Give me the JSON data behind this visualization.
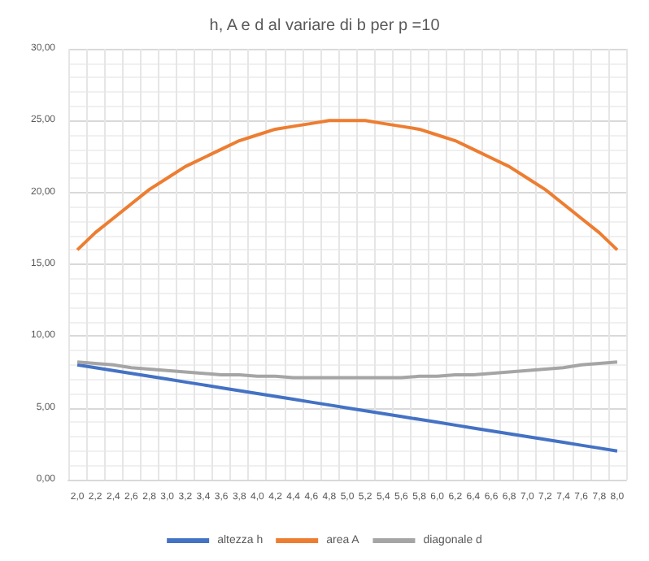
{
  "chart_data": {
    "type": "line",
    "title": "h, A e d al variare di b per p =10",
    "categories": [
      "2,0",
      "2,2",
      "2,4",
      "2,6",
      "2,8",
      "3,0",
      "3,2",
      "3,4",
      "3,6",
      "3,8",
      "4,0",
      "4,2",
      "4,4",
      "4,6",
      "4,8",
      "5,0",
      "5,2",
      "5,4",
      "5,6",
      "5,8",
      "6,0",
      "6,2",
      "6,4",
      "6,6",
      "6,8",
      "7,0",
      "7,2",
      "7,4",
      "7,6",
      "7,8",
      "8,0"
    ],
    "series": [
      {
        "name": "altezza h",
        "color": "#4472c4",
        "values": [
          8,
          7.8,
          7.6,
          7.4,
          7.2,
          7,
          6.8,
          6.6,
          6.4,
          6.2,
          6,
          5.8,
          5.6,
          5.4,
          5.2,
          5,
          4.8,
          4.6,
          4.4,
          4.2,
          4,
          3.8,
          3.6,
          3.4,
          3.2,
          3,
          2.8,
          2.6,
          2.4,
          2.2,
          2
        ]
      },
      {
        "name": "area A",
        "color": "#ed7d31",
        "values": [
          16,
          17.2,
          18.2,
          19.2,
          20.2,
          21,
          21.8,
          22.4,
          23,
          23.6,
          24,
          24.4,
          24.6,
          24.8,
          25,
          25,
          25,
          24.8,
          24.6,
          24.4,
          24,
          23.6,
          23,
          22.4,
          21.8,
          21,
          20.2,
          19.2,
          18.2,
          17.2,
          16
        ]
      },
      {
        "name": "diagonale d",
        "color": "#a5a5a5",
        "values": [
          8.2,
          8.1,
          8,
          7.8,
          7.7,
          7.6,
          7.5,
          7.4,
          7.3,
          7.3,
          7.2,
          7.2,
          7.1,
          7.1,
          7.1,
          7.1,
          7.1,
          7.1,
          7.1,
          7.2,
          7.2,
          7.3,
          7.3,
          7.4,
          7.5,
          7.6,
          7.7,
          7.8,
          8,
          8.1,
          8.2
        ]
      }
    ],
    "ylim": [
      0,
      30
    ],
    "yticks": [
      {
        "value": 0,
        "label": "0,00"
      },
      {
        "value": 5,
        "label": "5,00"
      },
      {
        "value": 10,
        "label": "10,00"
      },
      {
        "value": 15,
        "label": "15,00"
      },
      {
        "value": 20,
        "label": "20,00"
      },
      {
        "value": 25,
        "label": "25,00"
      },
      {
        "value": 30,
        "label": "30,00"
      }
    ],
    "grid": true,
    "legend": "bottom",
    "marker": "none",
    "line_style": "solid"
  }
}
